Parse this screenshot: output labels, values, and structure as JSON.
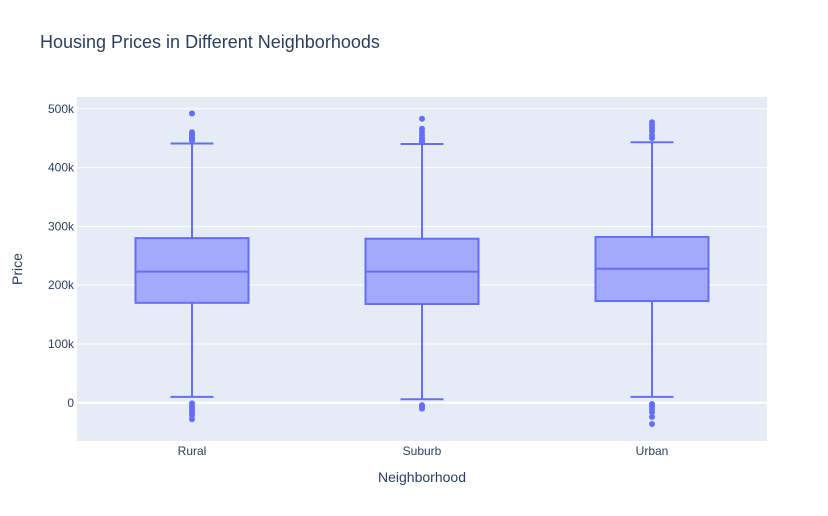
{
  "chart_data": {
    "type": "box",
    "title": "Housing Prices in Different Neighborhoods",
    "xlabel": "Neighborhood",
    "ylabel": "Price",
    "categories": [
      "Rural",
      "Suburb",
      "Urban"
    ],
    "ylim": [
      -65000,
      520000
    ],
    "yticks": [
      0,
      100000,
      200000,
      300000,
      400000,
      500000
    ],
    "ytick_labels": [
      "0",
      "100k",
      "200k",
      "300k",
      "400k",
      "500k"
    ],
    "grid": true,
    "colors": {
      "plot_bg": "#e5ecf6",
      "grid": "#ffffff",
      "box_line": "#636efa",
      "box_fill": "#a4aafb",
      "outlier": "#636efa",
      "text": "#2a3f5f"
    },
    "boxes": [
      {
        "category": "Rural",
        "lower_fence": 10000,
        "q1": 170000,
        "median": 223000,
        "q3": 280000,
        "upper_fence": 441000,
        "outliers": [
          492000,
          460000,
          457000,
          454000,
          451000,
          448000,
          446000,
          -1000,
          -5000,
          -9000,
          -13000,
          -17000,
          -21000,
          -28000
        ]
      },
      {
        "category": "Suburb",
        "lower_fence": 6000,
        "q1": 168000,
        "median": 223000,
        "q3": 279000,
        "upper_fence": 440000,
        "outliers": [
          483000,
          466000,
          460000,
          455000,
          450000,
          446000,
          443000,
          -4000,
          -7000,
          -10000
        ]
      },
      {
        "category": "Urban",
        "lower_fence": 10000,
        "q1": 173000,
        "median": 228000,
        "q3": 282000,
        "upper_fence": 443000,
        "outliers": [
          477000,
          472000,
          467000,
          462000,
          455000,
          450000,
          -2000,
          -6000,
          -11000,
          -16000,
          -24000,
          -36000
        ]
      }
    ]
  }
}
